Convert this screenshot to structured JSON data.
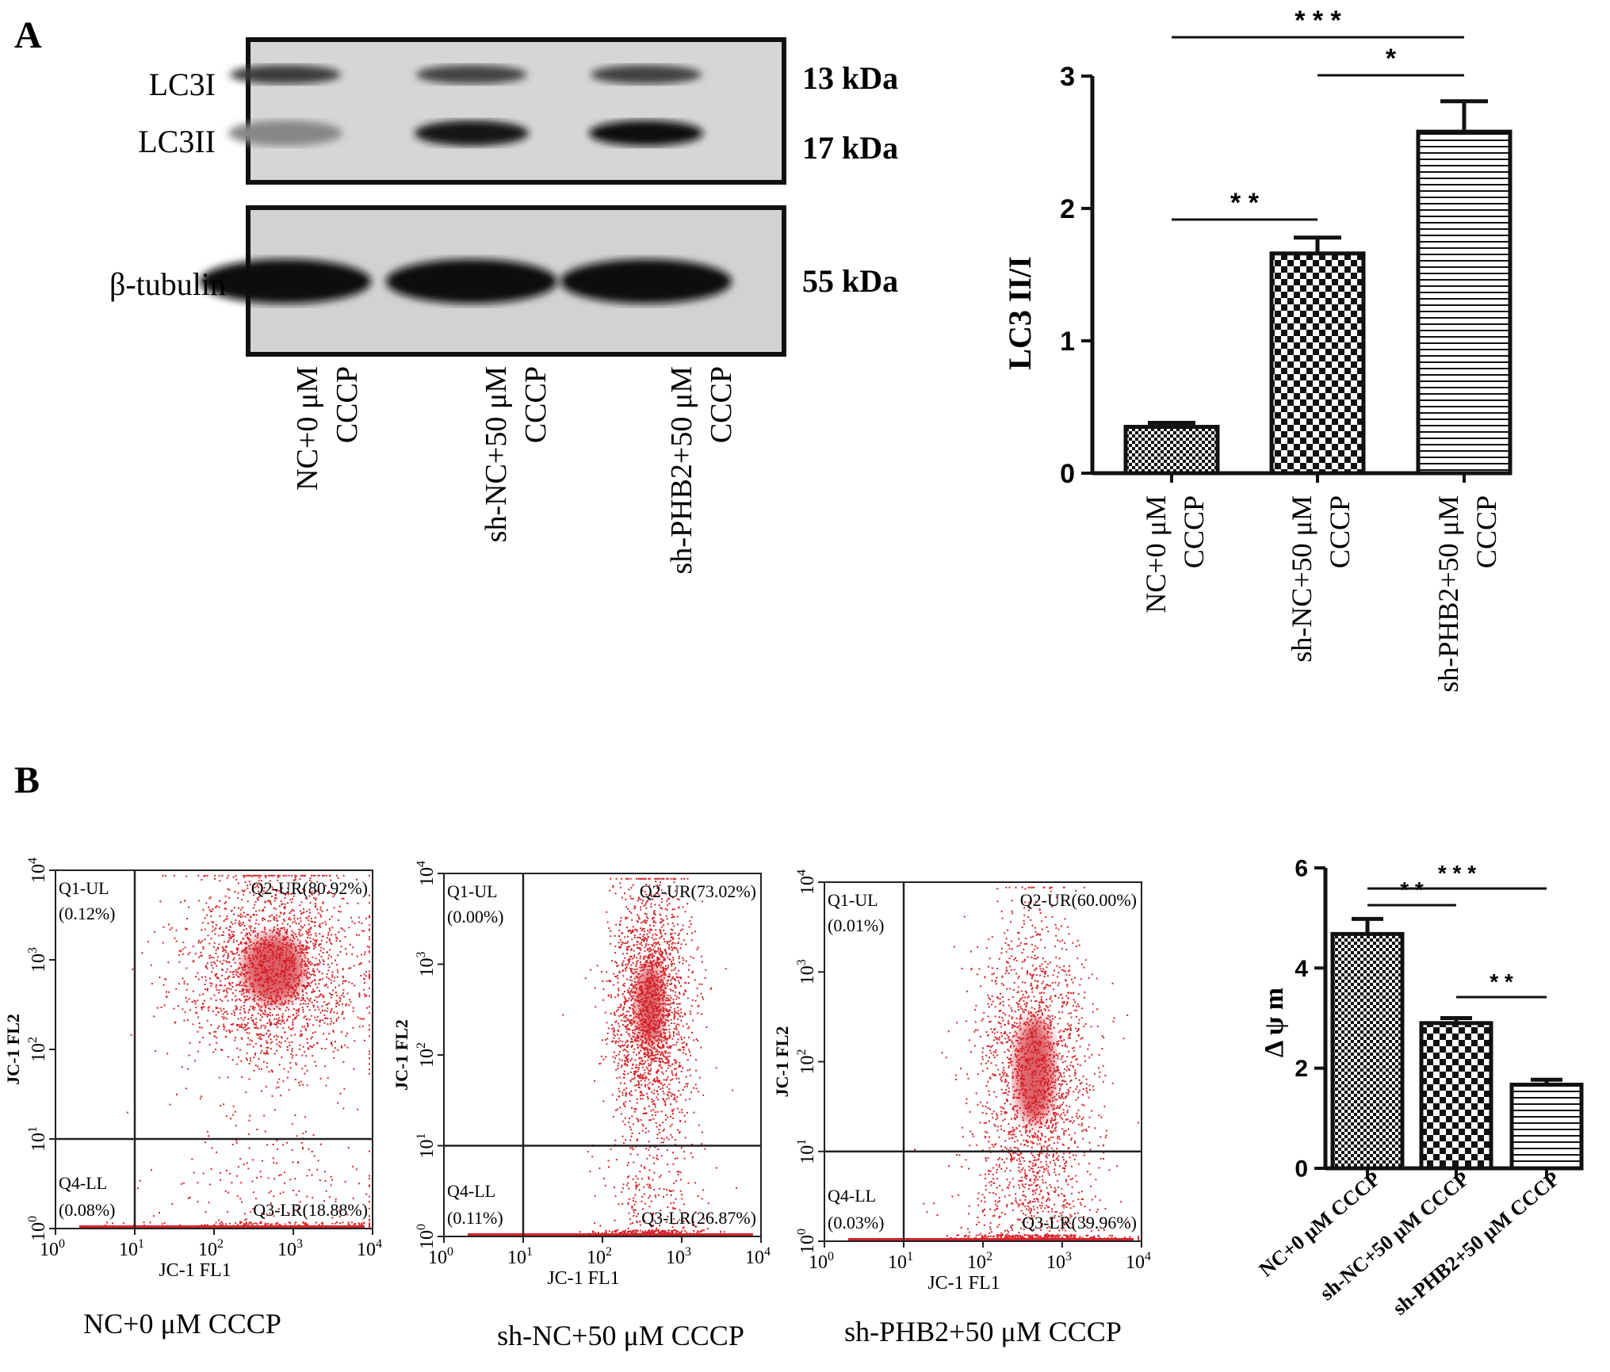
{
  "panel_a": {
    "label": "A",
    "blot": {
      "row_labels": [
        "LC3I",
        "LC3II",
        "β-tubulin"
      ],
      "kda_labels": [
        "13 kDa",
        "17 kDa",
        "55 kDa"
      ],
      "lanes": [
        {
          "line1": "NC+0 μM",
          "line2": "CCCP"
        },
        {
          "line1": "sh-NC+50 μM",
          "line2": "CCCP"
        },
        {
          "line1": "sh-PHB2+50 μM",
          "line2": "CCCP"
        }
      ],
      "band_intensity": {
        "LC3I": [
          0.75,
          0.7,
          0.72
        ],
        "LC3II": [
          0.35,
          0.95,
          1.0
        ],
        "beta_tubulin": [
          1.0,
          1.0,
          1.0
        ]
      }
    }
  },
  "panel_b": {
    "label": "B",
    "flow_plots": [
      {
        "title": "NC+0 μM CCCP",
        "q1": "Q1-UL",
        "q1_pct": "(0.12%)",
        "q2": "Q2-UR(80.92%)",
        "q3": "Q3-LR(18.88%)",
        "q4": "Q4-LL",
        "q4_pct": "(0.08%)",
        "xlabel": "JC-1 FL1",
        "ylabel": "JC-1 FL2",
        "center": [
          2.75,
          2.9
        ],
        "spread": [
          0.55,
          0.55
        ],
        "low_fraction": 0.15
      },
      {
        "title": "sh-NC+50 μM CCCP",
        "q1": "Q1-UL",
        "q1_pct": "(0.00%)",
        "q2": "Q2-UR(73.02%)",
        "q3": "Q3-LR(26.87%)",
        "q4": "Q4-LL",
        "q4_pct": "(0.11%)",
        "xlabel": "JC-1 FL1",
        "ylabel": "JC-1 FL2",
        "center": [
          2.6,
          2.55
        ],
        "spread": [
          0.25,
          0.65
        ],
        "low_fraction": 0.2
      },
      {
        "title": "sh-PHB2+50 μM CCCP",
        "q1": "Q1-UL",
        "q1_pct": "(0.01%)",
        "q2": "Q2-UR(60.00%)",
        "q3": "Q3-LR(39.96%)",
        "q4": "Q4-LL",
        "q4_pct": "(0.03%)",
        "xlabel": "JC-1 FL1",
        "ylabel": "JC-1 FL2",
        "center": [
          2.65,
          1.9
        ],
        "spread": [
          0.35,
          0.85
        ],
        "low_fraction": 0.3
      }
    ],
    "axis_ticks": {
      "base": "10",
      "exponents": [
        "0",
        "1",
        "2",
        "3",
        "4"
      ]
    }
  },
  "chart_data": [
    {
      "type": "bar",
      "categories": [
        {
          "line1": "NC+0 μM",
          "line2": "CCCP"
        },
        {
          "line1": "sh-NC+50 μM",
          "line2": "CCCP"
        },
        {
          "line1": "sh-PHB2+50 μM",
          "line2": "CCCP"
        }
      ],
      "values": [
        0.35,
        1.66,
        2.58
      ],
      "errors": [
        0.03,
        0.12,
        0.23
      ],
      "ylabel": "LC3 II/I",
      "ylim": [
        0,
        3
      ],
      "yticks": [
        "0",
        "1",
        "2",
        "3"
      ],
      "patterns": [
        "fine-check",
        "checker",
        "hstripes"
      ],
      "significance": [
        {
          "from": 0,
          "to": 1,
          "label": "* *"
        },
        {
          "from": 1,
          "to": 2,
          "label": "*"
        },
        {
          "from": 0,
          "to": 2,
          "label": "* * *"
        }
      ]
    },
    {
      "type": "bar",
      "categories": [
        "NC+0 μM CCCP",
        "sh-NC+50 μM CCCP",
        "sh-PHB2+50 μM CCCP"
      ],
      "values": [
        4.68,
        2.9,
        1.67
      ],
      "errors": [
        0.3,
        0.1,
        0.1
      ],
      "ylabel": "Δ ψ m",
      "ylim": [
        0,
        6
      ],
      "yticks": [
        "0",
        "2",
        "4",
        "6"
      ],
      "patterns": [
        "fine-check",
        "checker",
        "hstripes"
      ],
      "significance": [
        {
          "from": 0,
          "to": 1,
          "label": "* *"
        },
        {
          "from": 0,
          "to": 2,
          "label": "* * *"
        },
        {
          "from": 1,
          "to": 2,
          "label": "* *"
        }
      ]
    }
  ]
}
